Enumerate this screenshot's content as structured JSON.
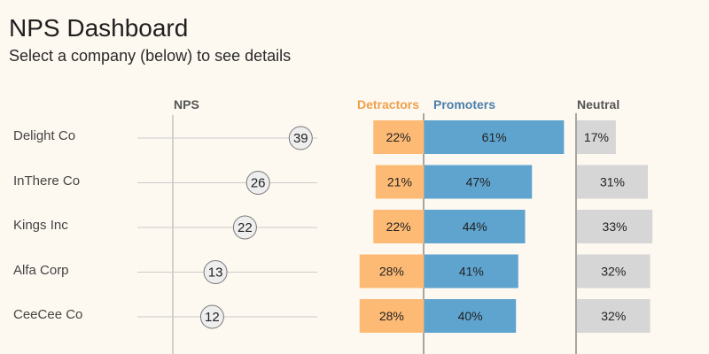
{
  "header": {
    "title": "NPS Dashboard",
    "subtitle": "Select a company (below) to see details"
  },
  "columns": {
    "nps": "NPS",
    "detractors": "Detractors",
    "promoters": "Promoters",
    "neutral": "Neutral"
  },
  "colors": {
    "detractors": "#fdba74",
    "promoters": "#5ea4cf",
    "neutral": "#d6d6d6",
    "nps_marker": "#eeeeee",
    "detractors_header": "#f0a04b",
    "promoters_header": "#4a7fab"
  },
  "chart_data": {
    "type": "bar",
    "categories": [
      "Delight Co",
      "InThere Co",
      "Kings Inc",
      "Alfa Corp",
      "CeeCee Co"
    ],
    "nps": [
      39,
      26,
      22,
      13,
      12
    ],
    "series": [
      {
        "name": "Detractors",
        "values": [
          22,
          21,
          22,
          28,
          28
        ]
      },
      {
        "name": "Promoters",
        "values": [
          61,
          47,
          44,
          41,
          40
        ]
      },
      {
        "name": "Neutral",
        "values": [
          17,
          31,
          33,
          32,
          32
        ]
      }
    ],
    "value_suffix": "%"
  }
}
